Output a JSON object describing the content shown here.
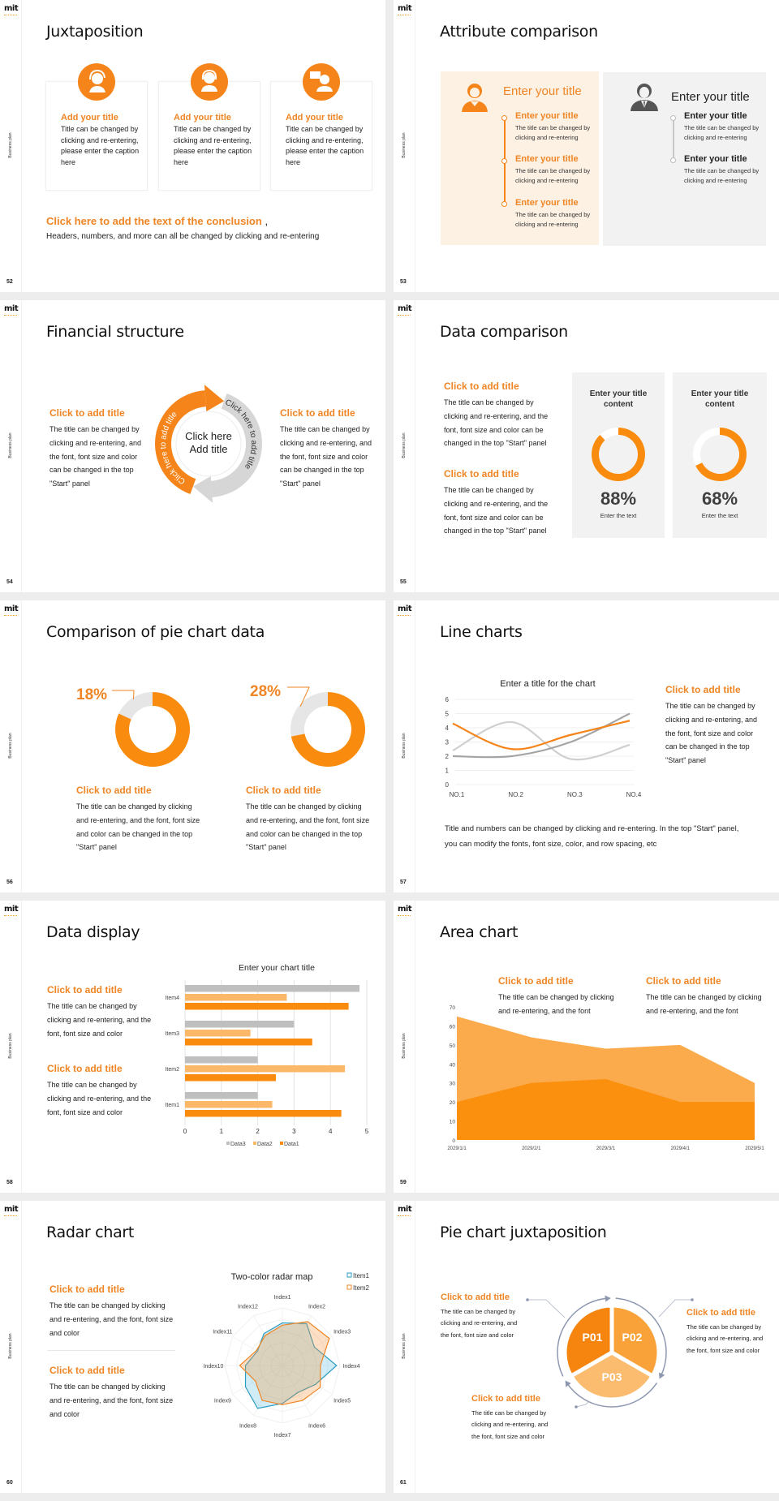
{
  "logo": "mit",
  "sidebar_label": "Business plan",
  "colors": {
    "accent": "#f5851a",
    "accent_light": "#fbb25f",
    "accent_pale": "#fdf1e3",
    "panel_gray": "#f2f2f2",
    "gray_series": "#bfbfbf",
    "dark_gray_series": "#a5a5a5",
    "radar_blue": "#2a9bc0"
  },
  "s52": {
    "page": "52",
    "title": "Juxtaposition",
    "cards": [
      {
        "icon": "customer-service-icon",
        "title": "Add your title",
        "body": "Title can be changed by clicking and re-entering, please enter the caption here"
      },
      {
        "icon": "businesswoman-icon",
        "title": "Add your title",
        "body": "Title can be changed by clicking and re-entering, please enter the caption here"
      },
      {
        "icon": "presenter-icon",
        "title": "Add your title",
        "body": "Title can be changed by clicking and re-entering, please enter the caption here"
      }
    ],
    "conclusion_title": "Click here to add the text of the conclusion",
    "conclusion_comma": ",",
    "conclusion_text": "Headers, numbers, and more can all be changed by clicking and re-entering"
  },
  "s53": {
    "page": "53",
    "title": "Attribute comparison",
    "left": {
      "heading": "Enter your title",
      "items": [
        {
          "title": "Enter your title",
          "body": "The title can be changed by clicking and re-entering"
        },
        {
          "title": "Enter your title",
          "body": "The title can be changed by clicking and re-entering"
        },
        {
          "title": "Enter your title",
          "body": "The title can be changed by clicking and re-entering"
        }
      ]
    },
    "right": {
      "heading": "Enter your title",
      "items": [
        {
          "title": "Enter your title",
          "body": "The title can be changed by clicking and re-entering"
        },
        {
          "title": "Enter your title",
          "body": "The title can be changed by clicking and re-entering"
        }
      ]
    }
  },
  "s54": {
    "page": "54",
    "title": "Financial structure",
    "left": {
      "title": "Click to add title",
      "body": "The title can be changed by clicking and re-entering, and the font, font size and color can be changed in the top \"Start\" panel"
    },
    "right": {
      "title": "Click to add title",
      "body": "The title can be changed by clicking and re-entering, and the font, font size and color can be changed in the top \"Start\" panel"
    },
    "center_line1": "Click here",
    "center_line2": "Add title",
    "arc_left": "Click here to add title",
    "arc_right": "Click here to add title"
  },
  "s55": {
    "page": "55",
    "title": "Data comparison",
    "blocks": [
      {
        "title": "Click to add title",
        "body": "The title can be changed by clicking and re-entering, and the font, font size and color can be changed in the top \"Start\" panel"
      },
      {
        "title": "Click to add title",
        "body": "The title can be changed by clicking and re-entering, and the font, font size and color can be changed in the top \"Start\" panel"
      }
    ],
    "cards": [
      {
        "title": "Enter your title content",
        "caption": "Enter the text"
      },
      {
        "title": "Enter your title content",
        "caption": "Enter the text"
      }
    ]
  },
  "s56": {
    "page": "56",
    "title": "Comparison of pie chart data",
    "blocks": [
      {
        "title": "Click to add title",
        "body": "The title can be changed by clicking and re-entering, and the font, font size and color can be changed in the top \"Start\" panel"
      },
      {
        "title": "Click to add title",
        "body": "The title can be changed by clicking and re-entering, and the font, font size and color can be changed in the top \"Start\" panel"
      }
    ]
  },
  "s57": {
    "page": "57",
    "title": "Line charts",
    "side_title": "Click to add title",
    "side_body": "The title can be changed by clicking and re-entering, and the font, font size and color can be changed in the top \"Start\" panel",
    "footer": "Title and numbers can be changed by clicking and re-entering. In the top \"Start\" panel, you can modify the fonts, font size, color, and row spacing, etc"
  },
  "s58": {
    "page": "58",
    "title": "Data display",
    "blocks": [
      {
        "title": "Click to add title",
        "body": "The title can be changed by clicking and re-entering, and the font, font size and color"
      },
      {
        "title": "Click to add title",
        "body": "The title can be changed by clicking and re-entering, and the font, font size and color"
      }
    ]
  },
  "s59": {
    "page": "59",
    "title": "Area chart",
    "blocks": [
      {
        "title": "Click to add title",
        "body": "The title can be changed by clicking and re-entering, and the font"
      },
      {
        "title": "Click to add title",
        "body": "The title can be changed by clicking and re-entering, and the font"
      }
    ]
  },
  "s60": {
    "page": "60",
    "title": "Radar chart",
    "blocks": [
      {
        "title": "Click to add title",
        "body": "The title can be changed by clicking and re-entering, and the font, font size and color"
      },
      {
        "title": "Click to add title",
        "body": "The title can be changed by clicking and re-entering, and the font, font size and color"
      }
    ]
  },
  "s61": {
    "page": "61",
    "title": "Pie chart juxtaposition",
    "blocks": [
      {
        "title": "Click to add title",
        "body": "The title can be changed by clicking and re-entering, and the font, font size and color"
      },
      {
        "title": "Click to add title",
        "body": "The title can be changed by clicking and re-entering, and the font, font size and color"
      },
      {
        "title": "Click to add title",
        "body": "The title can be changed by clicking and re-entering, and the font, font size and color"
      }
    ]
  },
  "chart_data": [
    {
      "type": "pie",
      "style": "donut",
      "values": [
        88,
        68
      ],
      "labels": [
        "88%",
        "68%"
      ]
    },
    {
      "type": "pie",
      "style": "donut",
      "values": [
        18,
        28
      ],
      "labels": [
        "18%",
        "28%"
      ]
    },
    {
      "type": "line",
      "title": "Enter a title for the chart",
      "categories": [
        "NO.1",
        "NO.2",
        "NO.3",
        "NO.4"
      ],
      "series": [
        {
          "values": [
            4.3,
            2.5,
            3.5,
            4.5
          ],
          "color": "#f5851a"
        },
        {
          "values": [
            2.4,
            4.4,
            1.8,
            2.8
          ],
          "color": "#d0d0d0"
        },
        {
          "values": [
            2,
            2,
            3,
            5
          ],
          "color": "#a5a5a5"
        }
      ],
      "ylim": [
        0,
        6
      ],
      "yticks": [
        "0",
        "1",
        "2",
        "3",
        "4",
        "5",
        "6"
      ],
      "grid": true,
      "smooth": true
    },
    {
      "type": "bar",
      "orientation": "horizontal",
      "title": "Enter your chart title",
      "categories": [
        "Item1",
        "Item2",
        "Item3",
        "Item4"
      ],
      "series": [
        {
          "name": "Data1",
          "values": [
            4.3,
            2.5,
            3.5,
            4.5
          ],
          "color": "#f98c0f"
        },
        {
          "name": "Data2",
          "values": [
            2.4,
            4.4,
            1.8,
            2.8
          ],
          "color": "#fbb868"
        },
        {
          "name": "Data3",
          "values": [
            2,
            2,
            3,
            4.8
          ],
          "color": "#bfbfbf"
        }
      ],
      "xlim": [
        0,
        5
      ],
      "xticks": [
        "0",
        "1",
        "2",
        "3",
        "4",
        "5"
      ],
      "legend": [
        "Data3",
        "Data2",
        "Data1"
      ],
      "legend_position": "bottom",
      "grid": true
    },
    {
      "type": "area",
      "categories": [
        "2029/1/1",
        "2029/2/1",
        "2029/3/1",
        "2029/4/1",
        "2029/5/1"
      ],
      "series": [
        {
          "values": [
            65,
            54,
            48,
            50,
            30
          ],
          "color": "#fbab4c"
        },
        {
          "values": [
            20,
            30,
            32,
            20,
            20
          ],
          "color": "#fb900f"
        }
      ],
      "ylim": [
        0,
        70
      ],
      "yticks": [
        "0",
        "10",
        "20",
        "30",
        "40",
        "50",
        "60",
        "70"
      ]
    },
    {
      "type": "radar",
      "title": "Two-color radar map",
      "categories": [
        "Index1",
        "Index2",
        "Index3",
        "Index4",
        "Index5",
        "Index6",
        "Index7",
        "Index8",
        "Index9",
        "Index10",
        "Index11",
        "Index12"
      ],
      "series": [
        {
          "name": "Item1",
          "values": [
            3.7,
            4.2,
            3.2,
            4.7,
            3.3,
            2.7,
            3.3,
            4.3,
            3.7,
            3.2,
            2.5,
            3.2
          ],
          "color": "#2a9bc0"
        },
        {
          "name": "Item2",
          "values": [
            3.5,
            4.4,
            4.7,
            3.3,
            3.8,
            3.5,
            3.4,
            3.5,
            2.7,
            3.7,
            2.6,
            3.0
          ],
          "color": "#ef8524"
        }
      ],
      "rlim": [
        0,
        5
      ],
      "legend_position": "top-right"
    },
    {
      "type": "pie",
      "categories": [
        "P01",
        "P02",
        "P03"
      ],
      "values": [
        1,
        1,
        1
      ],
      "colors": [
        "#f5850f",
        "#f9a23a",
        "#fbbc70"
      ]
    }
  ]
}
